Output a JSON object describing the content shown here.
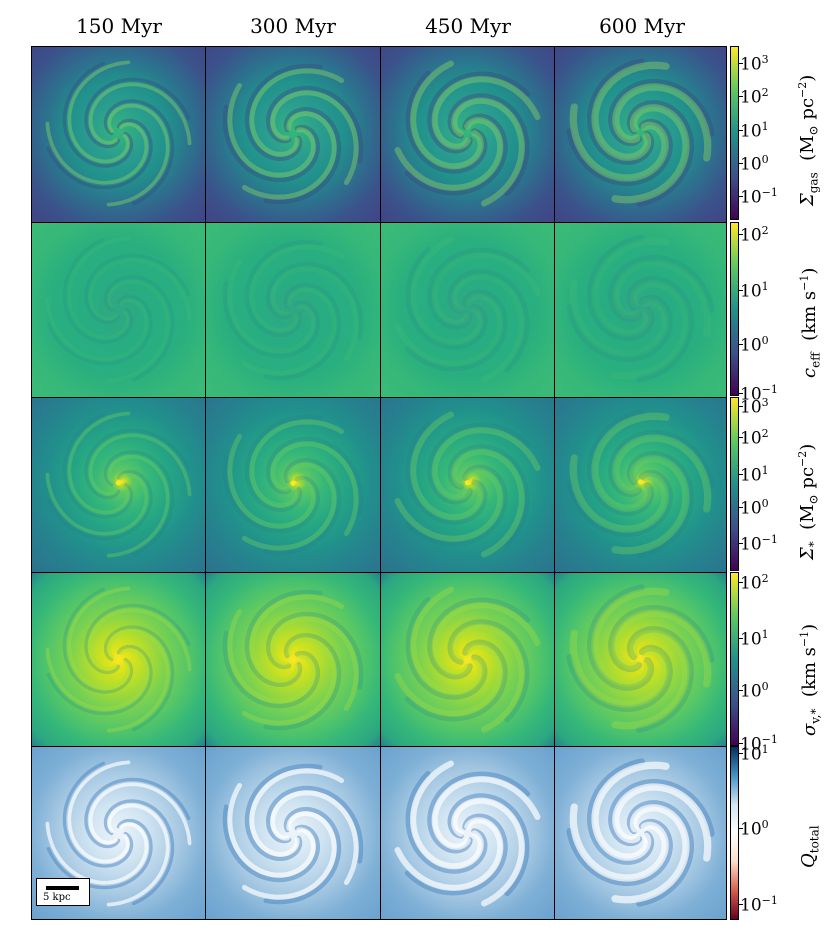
{
  "columns": [
    "150   Myr",
    "300   Myr",
    "450   Myr",
    "600   Myr"
  ],
  "rows": [
    {
      "label_main": "Σ",
      "label_sub": "gas",
      "label_unit": "(M",
      "label_unit2": "⊙",
      "label_unit3": " pc",
      "label_exp": "−2",
      "label_close": ")",
      "colormap": "viridis",
      "ticks": [
        {
          "base": "10",
          "exp": "3"
        },
        {
          "base": "10",
          "exp": "2"
        },
        {
          "base": "10",
          "exp": "1"
        },
        {
          "base": "10",
          "exp": "0"
        },
        {
          "base": "10",
          "exp": "−1"
        }
      ]
    },
    {
      "label_main": "c",
      "label_sub": "eff",
      "label_unit": "(km s",
      "label_exp": "−1",
      "label_close": ")",
      "colormap": "viridis",
      "ticks": [
        {
          "base": "10",
          "exp": "2"
        },
        {
          "base": "10",
          "exp": "1"
        },
        {
          "base": "10",
          "exp": "0"
        },
        {
          "base": "10",
          "exp": "−1"
        }
      ]
    },
    {
      "label_main": "Σ",
      "label_sub": "*",
      "label_unit": "(M",
      "label_unit2": "⊙",
      "label_unit3": " pc",
      "label_exp": "−2",
      "label_close": ")",
      "colormap": "viridis",
      "ticks": [
        {
          "base": "10",
          "exp": "3"
        },
        {
          "base": "10",
          "exp": "2"
        },
        {
          "base": "10",
          "exp": "1"
        },
        {
          "base": "10",
          "exp": "0"
        },
        {
          "base": "10",
          "exp": "−1"
        }
      ]
    },
    {
      "label_main": "σ",
      "label_sub": "v,*",
      "label_unit": "(km s",
      "label_exp": "−1",
      "label_close": ")",
      "colormap": "viridis",
      "ticks": [
        {
          "base": "10",
          "exp": "2"
        },
        {
          "base": "10",
          "exp": "1"
        },
        {
          "base": "10",
          "exp": "0"
        },
        {
          "base": "10",
          "exp": "−1"
        }
      ]
    },
    {
      "label_main": "Q",
      "label_sub": "total",
      "colormap": "RdBu",
      "ticks": [
        {
          "base": "10",
          "exp": "1"
        },
        {
          "base": "10",
          "exp": "0"
        },
        {
          "base": "10",
          "exp": "−1"
        }
      ]
    }
  ],
  "scale_bar": {
    "label": "5  kpc"
  },
  "colors": {
    "viridis_low": "#440154",
    "viridis_high": "#fde725",
    "rdbu_low": "#67001f",
    "rdbu_high": "#053061"
  }
}
